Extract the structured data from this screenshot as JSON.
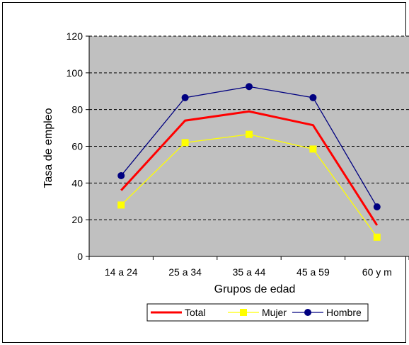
{
  "chart_data": {
    "type": "line",
    "xlabel": "Grupos de edad",
    "ylabel": "Tasa de empleo",
    "categories": [
      "14 a 24",
      "25 a 34",
      "35 a 44",
      "45 a 59",
      "60 y m"
    ],
    "ylim": [
      0,
      120
    ],
    "yticks": [
      0,
      20,
      40,
      60,
      80,
      100,
      120
    ],
    "grid": "horizontal dashed",
    "plot_background": "#C0C0C0",
    "legend_position": "bottom",
    "series": [
      {
        "name": "Total",
        "values": [
          36,
          74,
          79,
          71.5,
          17
        ],
        "color": "#FF0000",
        "marker": "none"
      },
      {
        "name": "Mujer",
        "values": [
          28,
          62,
          66.5,
          58.5,
          10.5
        ],
        "color": "#FFFF00",
        "marker": "square"
      },
      {
        "name": "Hombre",
        "values": [
          44,
          86.5,
          92.5,
          86.5,
          27
        ],
        "color": "#000080",
        "marker": "circle"
      }
    ]
  }
}
